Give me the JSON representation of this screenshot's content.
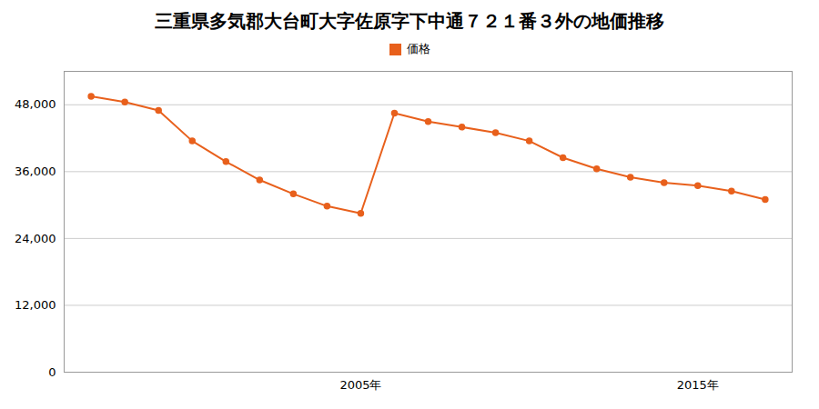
{
  "chart_data": {
    "type": "line",
    "title": "三重県多気郡大台町大字佐原字下中通７２１番３外の地価推移",
    "x": [
      1997,
      1998,
      1999,
      2000,
      2001,
      2002,
      2003,
      2004,
      2005,
      2006,
      2007,
      2008,
      2009,
      2010,
      2011,
      2012,
      2013,
      2014,
      2015,
      2016,
      2017
    ],
    "series": [
      {
        "name": "価格",
        "color": "#e8601c",
        "marker": "circle",
        "values": [
          49500,
          48500,
          47000,
          41500,
          37800,
          34500,
          32000,
          29800,
          28500,
          46500,
          45000,
          44000,
          43000,
          41500,
          38500,
          36500,
          35000,
          34000,
          33500,
          32500,
          31000
        ]
      }
    ],
    "xlim": [
      1996.2,
      2017.8
    ],
    "xticks": [
      {
        "value": 2005,
        "label": "2005年"
      },
      {
        "value": 2015,
        "label": "2015年"
      }
    ],
    "ylim": [
      0,
      54000
    ],
    "yticks": [
      0,
      {
        "value": 12000,
        "label": "12,000"
      },
      {
        "value": 24000,
        "label": "24,000"
      },
      {
        "value": 36000,
        "label": "36,000"
      },
      {
        "value": 48000,
        "label": "48,000"
      }
    ],
    "grid": true,
    "legend": "top"
  }
}
